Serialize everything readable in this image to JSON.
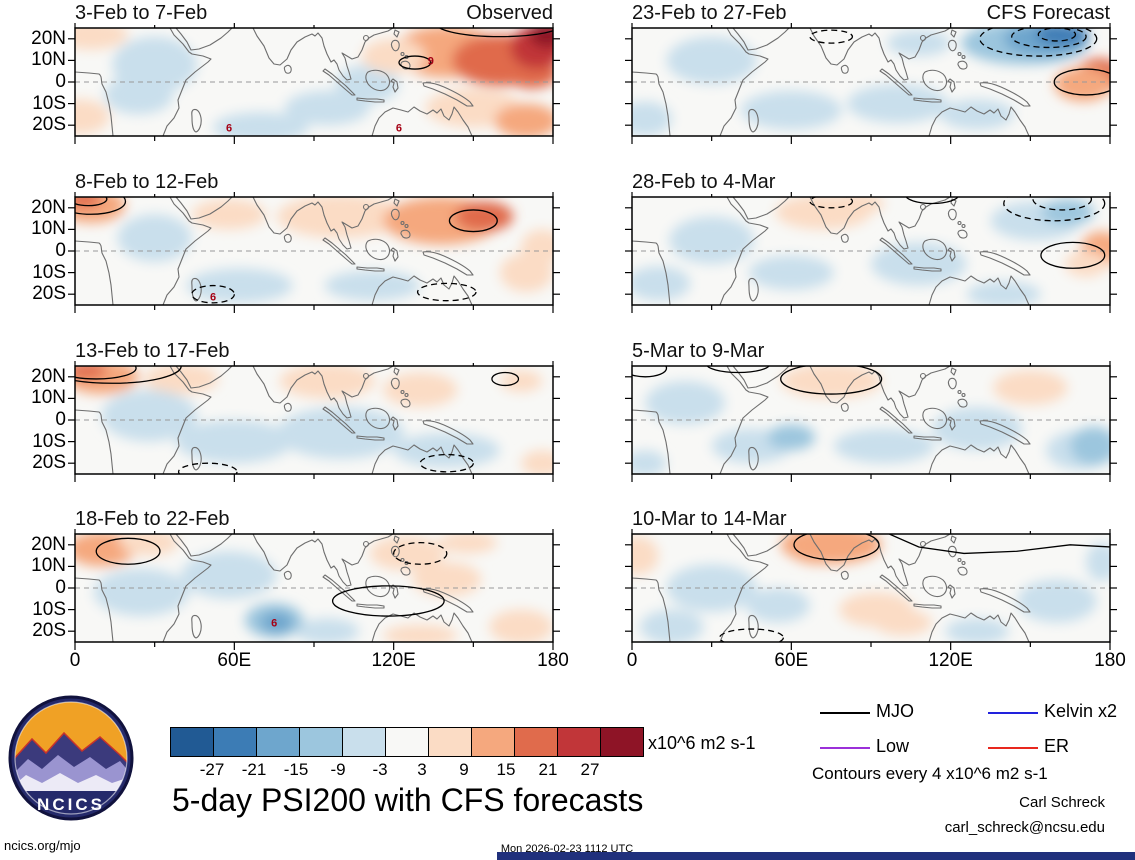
{
  "footer": {
    "site": "ncics.org/mjo",
    "timestamp": "Mon 2026-02-23 1112 UTC",
    "author": "Carl Schreck",
    "email": "carl_schreck@ncsu.edu",
    "logo_text": "NCICS",
    "bar_color": "#20307c"
  },
  "chart_data": {
    "type": "heatmap",
    "subtype": "filled-contour longitude-latitude maps of 200 hPa streamfunction anomalies with forecast contours",
    "title": "5-day PSI200 with CFS forecasts",
    "columns": [
      "Observed",
      "CFS Forecast"
    ],
    "lon_range": [
      0,
      180
    ],
    "lat_range": [
      -25,
      25
    ],
    "x_tick_labels": [
      "0",
      "60E",
      "120E",
      "180"
    ],
    "x_tick_lons": [
      0,
      60,
      120,
      180
    ],
    "x_minor_lons": [
      30,
      90,
      150
    ],
    "y_tick_labels": [
      "20N",
      "10N",
      "0",
      "10S",
      "20S"
    ],
    "y_tick_lats": [
      20,
      10,
      0,
      -10,
      -20
    ],
    "colorbar": {
      "levels": [
        -27,
        -21,
        -15,
        -9,
        -3,
        3,
        9,
        15,
        21,
        27
      ],
      "labels": [
        "-27",
        "-21",
        "-15",
        "-9",
        "-3",
        "3",
        "9",
        "15",
        "21",
        "27"
      ],
      "colors": [
        "#215a94",
        "#3c7cb5",
        "#6ea6cd",
        "#9cc6de",
        "#c9dfec",
        "#f8f8f6",
        "#fbdcc5",
        "#f5a87e",
        "#e06b4c",
        "#c13639",
        "#8e1426"
      ],
      "unit": "x10^6 m2 s-1"
    },
    "legend": {
      "items": [
        {
          "label": "MJO",
          "color": "#000000"
        },
        {
          "label": "Kelvin x2",
          "color": "#2222dd"
        },
        {
          "label": "Low",
          "color": "#9b30d9"
        },
        {
          "label": "ER",
          "color": "#e8281e"
        }
      ],
      "note": "Contours every 4 x10^6 m2 s-1"
    },
    "panels": [
      {
        "title": "3-Feb to 7-Feb",
        "row": 0,
        "col": 0,
        "corner": 0,
        "blobs": [
          [
            6,
            22,
            14,
            7,
            6
          ],
          [
            2,
            -16,
            11,
            8,
            6
          ],
          [
            30,
            8,
            16,
            13,
            4
          ],
          [
            24,
            -6,
            13,
            9,
            4
          ],
          [
            70,
            -21,
            18,
            7,
            4
          ],
          [
            95,
            -12,
            16,
            8,
            4
          ],
          [
            110,
            -1,
            12,
            9,
            4
          ],
          [
            140,
            14,
            20,
            12,
            7
          ],
          [
            160,
            10,
            18,
            12,
            8
          ],
          [
            172,
            4,
            10,
            7,
            8
          ],
          [
            174,
            16,
            10,
            10,
            9
          ],
          [
            178,
            22,
            7,
            6,
            10
          ],
          [
            150,
            -12,
            18,
            9,
            6
          ],
          [
            170,
            -18,
            12,
            8,
            7
          ],
          [
            120,
            12,
            12,
            8,
            6
          ]
        ],
        "contours": [
          [
            "e",
            128,
            9,
            6,
            3,
            0
          ],
          [
            "e",
            160,
            27,
            24,
            6,
            0
          ]
        ],
        "cyclones": [
          [
            134,
            10
          ],
          [
            58,
            -21
          ],
          [
            122,
            -21
          ]
        ]
      },
      {
        "title": "8-Feb to 12-Feb",
        "row": 1,
        "col": 0,
        "corner": null,
        "blobs": [
          [
            6,
            21,
            13,
            8,
            7
          ],
          [
            3,
            24,
            7,
            4,
            8
          ],
          [
            30,
            6,
            14,
            11,
            4
          ],
          [
            62,
            -16,
            20,
            8,
            4
          ],
          [
            58,
            17,
            14,
            7,
            6
          ],
          [
            100,
            16,
            24,
            10,
            6
          ],
          [
            138,
            14,
            22,
            11,
            7
          ],
          [
            154,
            16,
            11,
            7,
            8
          ],
          [
            112,
            -16,
            18,
            7,
            4
          ],
          [
            170,
            -10,
            10,
            9,
            6
          ],
          [
            176,
            2,
            8,
            8,
            6
          ]
        ],
        "contours": [
          [
            "e",
            6,
            23,
            13,
            6,
            0
          ],
          [
            "e",
            5,
            24,
            7,
            3,
            0
          ],
          [
            "e",
            150,
            14,
            9,
            5,
            0
          ],
          [
            "e",
            52,
            -20,
            8,
            4,
            1
          ],
          [
            "e",
            140,
            -19,
            11,
            4,
            1
          ]
        ],
        "cyclones": [
          [
            52,
            -21
          ]
        ]
      },
      {
        "title": "13-Feb to 17-Feb",
        "row": 2,
        "col": 0,
        "corner": null,
        "blobs": [
          [
            10,
            20,
            14,
            8,
            7
          ],
          [
            4,
            23,
            8,
            4,
            8
          ],
          [
            40,
            19,
            14,
            7,
            6
          ],
          [
            28,
            2,
            18,
            12,
            4
          ],
          [
            60,
            -10,
            22,
            10,
            4
          ],
          [
            100,
            -6,
            24,
            12,
            4
          ],
          [
            140,
            -14,
            20,
            8,
            4
          ],
          [
            95,
            18,
            18,
            8,
            6
          ],
          [
            130,
            14,
            14,
            8,
            6
          ],
          [
            176,
            -20,
            8,
            6,
            6
          ],
          [
            168,
            18,
            8,
            5,
            6
          ]
        ],
        "contours": [
          [
            "e",
            14,
            25,
            26,
            8,
            0
          ],
          [
            "e",
            8,
            24,
            15,
            5,
            0
          ],
          [
            "e",
            162,
            19,
            5,
            3,
            0
          ],
          [
            "e",
            140,
            -20,
            10,
            4,
            1
          ],
          [
            "e",
            50,
            -24,
            11,
            4,
            1
          ]
        ],
        "cyclones": []
      },
      {
        "title": "18-Feb to 22-Feb",
        "row": 3,
        "col": 0,
        "corner": null,
        "blobs": [
          [
            10,
            18,
            13,
            8,
            7
          ],
          [
            28,
            21,
            11,
            6,
            6
          ],
          [
            25,
            -2,
            18,
            11,
            4
          ],
          [
            58,
            6,
            18,
            11,
            4
          ],
          [
            95,
            -20,
            12,
            6,
            4
          ],
          [
            75,
            -15,
            11,
            8,
            3
          ],
          [
            76,
            -16,
            6,
            5,
            2
          ],
          [
            125,
            16,
            14,
            8,
            6
          ],
          [
            148,
            21,
            11,
            5,
            6
          ],
          [
            140,
            4,
            13,
            8,
            6
          ],
          [
            168,
            -18,
            12,
            8,
            6
          ],
          [
            130,
            -22,
            14,
            5,
            6
          ]
        ],
        "contours": [
          [
            "e",
            20,
            17,
            12,
            6,
            0
          ],
          [
            "e",
            130,
            16,
            10,
            5,
            1
          ],
          [
            "e",
            118,
            -6,
            21,
            7,
            0
          ]
        ],
        "cyclones": [
          [
            75,
            -16
          ]
        ]
      },
      {
        "title": "23-Feb to 27-Feb",
        "row": 0,
        "col": 1,
        "corner": 1,
        "blobs": [
          [
            30,
            10,
            17,
            11,
            4
          ],
          [
            60,
            -13,
            19,
            9,
            4
          ],
          [
            5,
            -17,
            10,
            8,
            4
          ],
          [
            100,
            -10,
            19,
            9,
            4
          ],
          [
            130,
            -15,
            14,
            7,
            4
          ],
          [
            108,
            18,
            12,
            6,
            4
          ],
          [
            148,
            18,
            24,
            10,
            3
          ],
          [
            156,
            20,
            16,
            8,
            2
          ],
          [
            162,
            22,
            10,
            5,
            1
          ],
          [
            176,
            3,
            9,
            8,
            8
          ],
          [
            170,
            -1,
            11,
            8,
            7
          ]
        ],
        "contours": [
          [
            "e",
            153,
            20,
            22,
            8,
            1
          ],
          [
            "e",
            157,
            21,
            14,
            5,
            1
          ],
          [
            "e",
            160,
            22,
            7,
            3,
            1
          ],
          [
            "e",
            171,
            0,
            12,
            6,
            0
          ],
          [
            "e",
            75,
            21,
            8,
            3,
            1
          ]
        ],
        "cyclones": []
      },
      {
        "title": "28-Feb to 4-Mar",
        "row": 1,
        "col": 1,
        "corner": null,
        "blobs": [
          [
            72,
            18,
            18,
            8,
            6
          ],
          [
            85,
            22,
            10,
            5,
            6
          ],
          [
            30,
            5,
            16,
            11,
            4
          ],
          [
            10,
            -15,
            12,
            8,
            4
          ],
          [
            60,
            -10,
            16,
            8,
            4
          ],
          [
            108,
            -6,
            18,
            10,
            4
          ],
          [
            152,
            14,
            17,
            9,
            4
          ],
          [
            164,
            18,
            10,
            6,
            3
          ],
          [
            177,
            1,
            8,
            8,
            7
          ],
          [
            171,
            -6,
            8,
            6,
            6
          ],
          [
            140,
            -20,
            14,
            6,
            4
          ]
        ],
        "contours": [
          [
            "e",
            159,
            22,
            19,
            8,
            1
          ],
          [
            "e",
            162,
            24,
            11,
            5,
            1
          ],
          [
            "e",
            166,
            -2,
            12,
            6,
            0
          ],
          [
            "e",
            75,
            23,
            8,
            3,
            1
          ],
          [
            "e",
            113,
            26,
            10,
            4,
            0
          ]
        ],
        "cyclones": []
      },
      {
        "title": "5-Mar to 9-Mar",
        "row": 2,
        "col": 1,
        "corner": null,
        "blobs": [
          [
            75,
            18,
            19,
            8,
            6
          ],
          [
            20,
            8,
            15,
            10,
            4
          ],
          [
            45,
            -12,
            15,
            8,
            4
          ],
          [
            60,
            -8,
            9,
            6,
            3
          ],
          [
            95,
            -12,
            19,
            8,
            4
          ],
          [
            130,
            -4,
            17,
            10,
            4
          ],
          [
            150,
            15,
            14,
            8,
            6
          ],
          [
            168,
            -14,
            12,
            9,
            4
          ],
          [
            174,
            -12,
            9,
            9,
            3
          ],
          [
            5,
            -20,
            8,
            6,
            4
          ]
        ],
        "contours": [
          [
            "e",
            75,
            19,
            19,
            7,
            0
          ],
          [
            "e",
            5,
            24,
            8,
            4,
            0
          ],
          [
            "e",
            40,
            26,
            12,
            4,
            0
          ]
        ],
        "cyclones": []
      },
      {
        "title": "10-Mar to 14-Mar",
        "row": 3,
        "col": 1,
        "corner": null,
        "blobs": [
          [
            75,
            20,
            19,
            9,
            7
          ],
          [
            70,
            17,
            10,
            6,
            7
          ],
          [
            2,
            15,
            8,
            9,
            6
          ],
          [
            30,
            0,
            17,
            11,
            4
          ],
          [
            15,
            -18,
            12,
            8,
            4
          ],
          [
            55,
            -8,
            12,
            8,
            4
          ],
          [
            92,
            -10,
            14,
            8,
            6
          ],
          [
            102,
            -16,
            11,
            6,
            6
          ],
          [
            160,
            -6,
            15,
            10,
            4
          ],
          [
            177,
            12,
            6,
            9,
            4
          ],
          [
            130,
            -20,
            12,
            6,
            4
          ]
        ],
        "contours": [
          [
            "e",
            77,
            20,
            16,
            7,
            0
          ],
          [
            "p",
            0,
            [
              [
                95,
                26
              ],
              [
                108,
                19
              ],
              [
                125,
                16
              ],
              [
                145,
                17
              ],
              [
                165,
                20
              ],
              [
                180,
                19
              ]
            ]
          ],
          [
            "e",
            45,
            -23,
            12,
            4,
            1
          ]
        ],
        "cyclones": []
      }
    ]
  }
}
